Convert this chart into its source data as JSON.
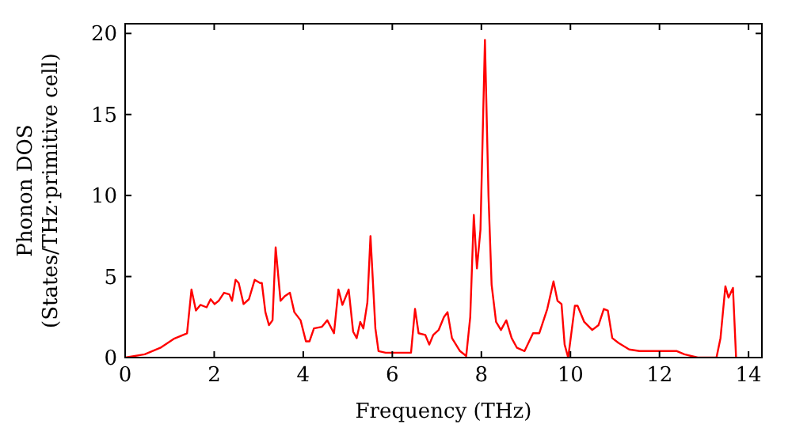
{
  "chart_data": {
    "type": "line",
    "xlabel": "Frequency (THz)",
    "ylabel": "Phonon DOS\n(States/THz·primitive cell)",
    "xlim": [
      0,
      14.3
    ],
    "ylim": [
      0,
      20.6
    ],
    "xticks": [
      0,
      2,
      4,
      6,
      8,
      10,
      12,
      14
    ],
    "yticks": [
      0,
      5,
      10,
      15,
      20
    ],
    "grid": false,
    "marker": "none",
    "line_style": "solid",
    "series": [
      {
        "color": "#ff0000",
        "x": [
          0,
          0.44,
          0.79,
          1.09,
          1.39,
          1.49,
          1.59,
          1.69,
          1.83,
          1.92,
          2.01,
          2.1,
          2.22,
          2.34,
          2.4,
          2.48,
          2.55,
          2.66,
          2.78,
          2.91,
          3.03,
          3.07,
          3.15,
          3.23,
          3.31,
          3.38,
          3.49,
          3.59,
          3.7,
          3.8,
          3.94,
          4.06,
          4.14,
          4.24,
          4.42,
          4.54,
          4.69,
          4.79,
          4.88,
          5.02,
          5.12,
          5.2,
          5.28,
          5.35,
          5.44,
          5.51,
          5.62,
          5.69,
          5.85,
          6.42,
          6.51,
          6.59,
          6.74,
          6.83,
          6.92,
          7.04,
          7.16,
          7.24,
          7.34,
          7.52,
          7.66,
          7.75,
          7.83,
          7.9,
          7.98,
          8.08,
          8.16,
          8.23,
          8.33,
          8.44,
          8.56,
          8.68,
          8.8,
          8.97,
          9.16,
          9.3,
          9.48,
          9.62,
          9.71,
          9.8,
          9.87,
          9.95,
          10.1,
          10.16,
          10.31,
          10.49,
          10.63,
          10.75,
          10.84,
          10.94,
          11.08,
          11.32,
          11.55,
          12.39,
          12.56,
          12.86,
          13.28,
          13.37,
          13.48,
          13.55,
          13.65,
          13.72
        ],
        "values": [
          0,
          0.2,
          0.6,
          1.15,
          1.5,
          4.2,
          2.9,
          3.25,
          3.1,
          3.6,
          3.3,
          3.5,
          4.0,
          3.9,
          3.5,
          4.8,
          4.6,
          3.3,
          3.6,
          4.8,
          4.6,
          4.6,
          2.8,
          2.0,
          2.3,
          6.8,
          3.5,
          3.8,
          4.0,
          2.8,
          2.3,
          1.0,
          1.0,
          1.8,
          1.9,
          2.3,
          1.5,
          4.2,
          3.25,
          4.2,
          1.6,
          1.2,
          2.2,
          1.8,
          3.4,
          7.5,
          1.8,
          0.4,
          0.3,
          0.3,
          3.0,
          1.5,
          1.4,
          0.8,
          1.4,
          1.7,
          2.5,
          2.8,
          1.2,
          0.4,
          0.1,
          2.5,
          8.8,
          5.5,
          7.9,
          19.6,
          10.0,
          4.5,
          2.2,
          1.7,
          2.3,
          1.2,
          0.6,
          0.4,
          1.5,
          1.5,
          3.0,
          4.7,
          3.5,
          3.3,
          0.8,
          0.0,
          3.2,
          3.2,
          2.2,
          1.7,
          2.0,
          3.0,
          2.9,
          1.2,
          0.9,
          0.5,
          0.4,
          0.4,
          0.2,
          0.0,
          0.0,
          1.2,
          4.4,
          3.7,
          4.3,
          0.0
        ]
      }
    ]
  }
}
